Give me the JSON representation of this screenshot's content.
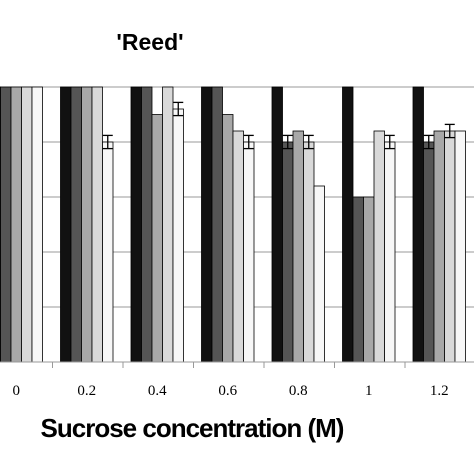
{
  "chart_data": {
    "type": "bar",
    "title": "'Reed'",
    "xlabel": "Sucrose concentration (M)",
    "ylabel": "",
    "ylim": [
      0,
      5
    ],
    "grid": true,
    "categories": [
      "0",
      "0.2",
      "0.4",
      "0.6",
      "0.8",
      "1",
      "1.2"
    ],
    "series": [
      {
        "values": [
          5,
          5,
          5,
          5,
          5,
          5,
          5
        ],
        "color": "#111111",
        "errors": [
          0,
          0,
          0,
          0,
          0,
          0,
          0
        ]
      },
      {
        "values": [
          5,
          5,
          5,
          5,
          4,
          3,
          4
        ],
        "color": "#555555",
        "errors": [
          0,
          0,
          0,
          0,
          0.12,
          0,
          0.12
        ]
      },
      {
        "values": [
          5,
          5,
          4.5,
          4.5,
          4.2,
          3,
          4.2
        ],
        "color": "#a8a8a8",
        "errors": [
          0,
          0,
          0,
          0,
          0,
          0,
          0
        ]
      },
      {
        "values": [
          5,
          5,
          5,
          4.2,
          4,
          4.2,
          4.2
        ],
        "color": "#d9d9d9",
        "errors": [
          0,
          0,
          0,
          0,
          0.12,
          0,
          0.12
        ]
      },
      {
        "values": [
          5,
          4,
          4.6,
          4,
          3.2,
          4,
          4.2
        ],
        "color": "#f7f7f7",
        "errors": [
          0,
          0.12,
          0.12,
          0.12,
          0,
          0.12,
          0
        ]
      }
    ]
  }
}
